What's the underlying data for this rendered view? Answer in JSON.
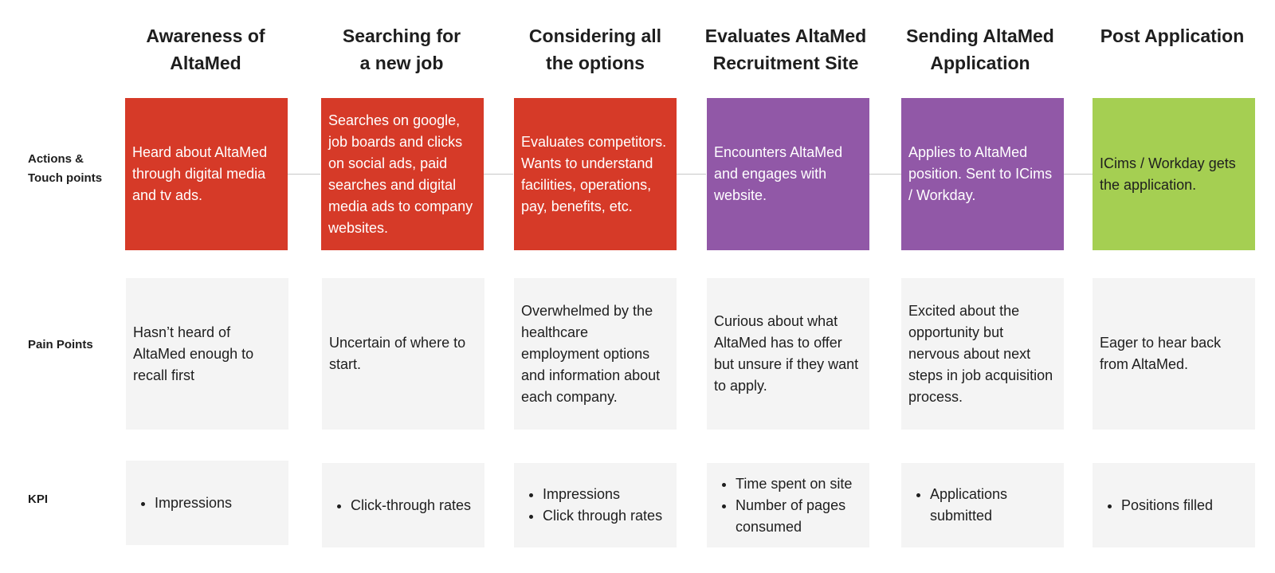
{
  "colors": {
    "red": "#d63a28",
    "purple": "#9158a7",
    "green": "#a5cf52",
    "card_gray": "#f4f4f4"
  },
  "row_labels": {
    "actions": "Actions &\nTouch points",
    "pain_points": "Pain Points",
    "kpi": "KPI"
  },
  "stages": [
    {
      "title": "Awareness of\nAltaMed",
      "action": "Heard about AltaMed through digital media and tv ads.",
      "action_color": "#d63a28",
      "pain": "Hasn’t heard of AltaMed enough to recall first",
      "kpis": [
        "Impressions"
      ]
    },
    {
      "title": "Searching for\na new job",
      "action": "Searches on google, job boards and clicks on social ads, paid searches and digital media ads to company websites.",
      "action_color": "#d63a28",
      "pain": "Uncertain of where to start.",
      "kpis": [
        "Click-through rates"
      ]
    },
    {
      "title": "Considering all\nthe options",
      "action": "Evaluates competitors.\nWants to understand facilities, operations, pay, benefits, etc.",
      "action_color": "#d63a28",
      "pain": "Overwhelmed by the healthcare employment options and information about each company.",
      "kpis": [
        "Impressions",
        "Click through rates"
      ]
    },
    {
      "title": "Evaluates AltaMed\nRecruitment Site",
      "action": "Encounters AltaMed and engages with website.",
      "action_color": "#9158a7",
      "pain": "Curious about what AltaMed has to offer but unsure if they want to apply.",
      "kpis": [
        "Time spent on site",
        "Number of pages consumed"
      ]
    },
    {
      "title": "Sending AltaMed\nApplication",
      "action": "Applies to AltaMed position. Sent to ICims / Workday.",
      "action_color": "#9158a7",
      "pain": "Excited about the opportunity but nervous about next steps in job acquisition process.",
      "kpis": [
        "Applications submitted"
      ]
    },
    {
      "title": "Post Application",
      "action": "ICims / Workday gets the application.",
      "action_color": "#a5cf52",
      "pain": "Eager to hear back from AltaMed.",
      "kpis": [
        "Positions filled"
      ]
    }
  ]
}
